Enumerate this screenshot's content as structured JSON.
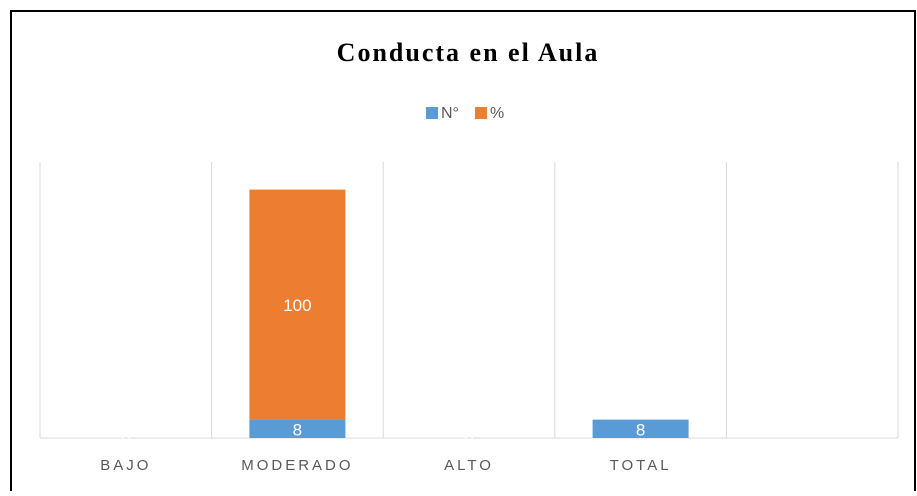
{
  "chart_data": {
    "type": "stacked_bar",
    "title": "Conducta en el Aula",
    "categories": [
      "BAJO",
      "MODERADO",
      "ALTO",
      "TOTAL",
      null
    ],
    "series": [
      {
        "name": "N°",
        "color": "#5b9bd5",
        "values": [
          0,
          8,
          0,
          8,
          null
        ]
      },
      {
        "name": "%",
        "color": "#ed7d31",
        "values": [
          0,
          100,
          0,
          null,
          null
        ]
      }
    ],
    "ylim": [
      0,
      120
    ],
    "legend": "top"
  }
}
